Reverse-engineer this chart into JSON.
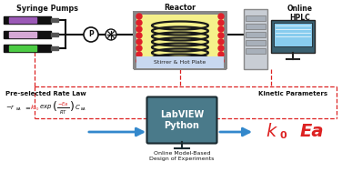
{
  "bg_color": "#ffffff",
  "syringe_pumps_label": "Syringe Pumps",
  "reactor_label": "Reactor",
  "stirrer_label": "Stirrer & Hot Plate",
  "hplc_label": "Online\nHPLC",
  "rate_law_label": "Pre-selected Rate Law",
  "labview_label": "LabVIEW\nPython",
  "doe_label": "Online Model-Based\nDesign of Experiments",
  "kinetic_label": "Kinetic Parameters",
  "syringe_colors": [
    "#9b59b6",
    "#d5a8d5",
    "#4ccc44"
  ],
  "reactor_fill": "#f5f08a",
  "reactor_border": "#888888",
  "stirrer_fill": "#c8d8f0",
  "coil_color": "#1a1a1a",
  "hot_dots_color": "#e0202a",
  "hplc_tower_color": "#c8cdd4",
  "hplc_shelf_color": "#a8b0ba",
  "monitor_body": "#4a7a8a",
  "monitor_screen": "#88ccee",
  "labview_box_color": "#4a7a8a",
  "arrow_color": "#3388cc",
  "dashed_color": "#dd2222",
  "red_text": "#dd2222",
  "black_text": "#111111",
  "line_color": "#111111"
}
